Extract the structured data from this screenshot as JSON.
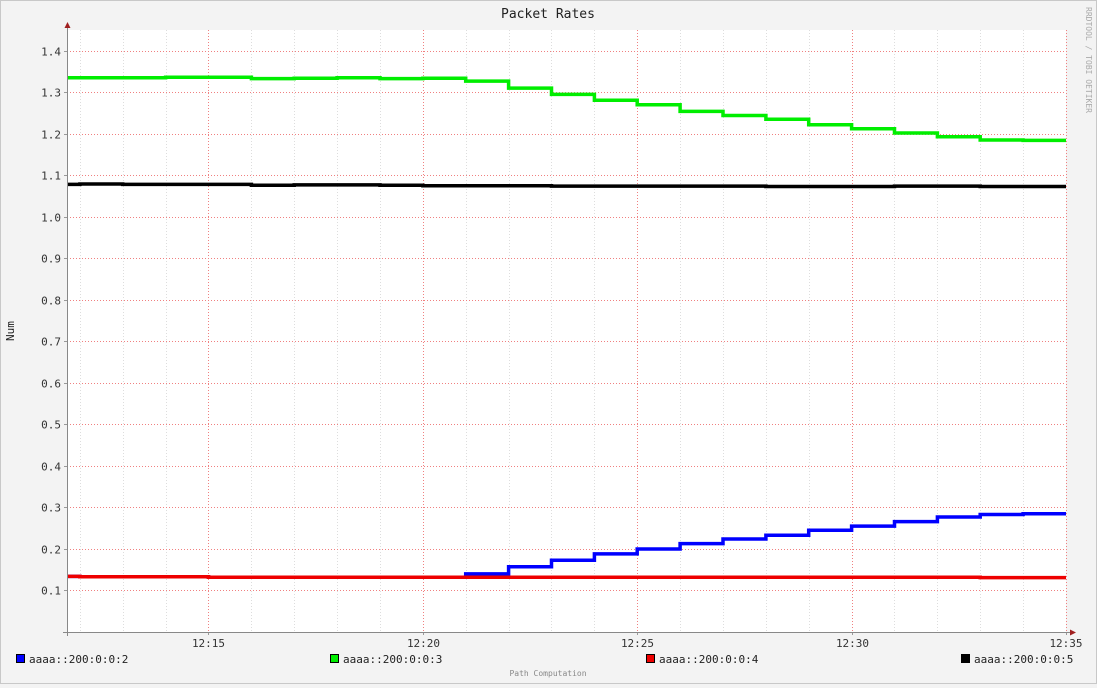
{
  "chart_data": {
    "type": "line",
    "title": "Packet Rates",
    "ylabel": "Num",
    "xlabel": "",
    "watermark": "RRDTOOL / TOBI OETIKER",
    "footer": "Path Computation",
    "x_ticks": [
      "12:15",
      "12:20",
      "12:25",
      "12:30",
      "12:35"
    ],
    "x_tick_minutes": [
      15,
      20,
      25,
      30,
      35
    ],
    "x_range_minutes": [
      11.7,
      35
    ],
    "y_ticks": [
      "0.1",
      "0.2",
      "0.3",
      "0.4",
      "0.5",
      "0.6",
      "0.7",
      "0.8",
      "0.9",
      "1.0",
      "1.1",
      "1.2",
      "1.3",
      "1.4"
    ],
    "ylim": [
      0,
      1.45
    ],
    "grid": true,
    "legend_position": "bottom",
    "series": [
      {
        "name": "aaaa::200:0:0:2",
        "color": "#0000ff",
        "step_x_minutes": [
          12,
          13,
          14,
          15,
          16,
          17,
          18,
          19,
          20,
          21,
          22,
          23,
          24,
          25,
          26,
          27,
          28,
          29,
          30,
          31,
          32,
          33,
          34,
          35
        ],
        "values": [
          0.134,
          0.133,
          0.133,
          0.133,
          0.132,
          0.132,
          0.132,
          0.132,
          0.132,
          0.132,
          0.14,
          0.157,
          0.173,
          0.188,
          0.2,
          0.213,
          0.224,
          0.233,
          0.245,
          0.255,
          0.266,
          0.277,
          0.283,
          0.285
        ]
      },
      {
        "name": "aaaa::200:0:0:3",
        "color": "#00ee00",
        "step_x_minutes": [
          12,
          13,
          14,
          15,
          16,
          17,
          18,
          19,
          20,
          21,
          22,
          23,
          24,
          25,
          26,
          27,
          28,
          29,
          30,
          31,
          32,
          33,
          34,
          35
        ],
        "values": [
          1.335,
          1.335,
          1.335,
          1.336,
          1.336,
          1.333,
          1.334,
          1.335,
          1.333,
          1.334,
          1.327,
          1.31,
          1.295,
          1.281,
          1.27,
          1.254,
          1.244,
          1.235,
          1.222,
          1.212,
          1.202,
          1.193,
          1.185,
          1.184
        ]
      },
      {
        "name": "aaaa::200:0:0:4",
        "color": "#ee0000",
        "step_x_minutes": [
          12,
          13,
          14,
          15,
          16,
          17,
          18,
          19,
          20,
          21,
          22,
          23,
          24,
          25,
          26,
          27,
          28,
          29,
          30,
          31,
          32,
          33,
          34,
          35
        ],
        "values": [
          0.134,
          0.133,
          0.133,
          0.133,
          0.132,
          0.132,
          0.132,
          0.132,
          0.132,
          0.132,
          0.132,
          0.132,
          0.132,
          0.132,
          0.132,
          0.132,
          0.132,
          0.132,
          0.132,
          0.132,
          0.132,
          0.132,
          0.131,
          0.131
        ]
      },
      {
        "name": "aaaa::200:0:0:5",
        "color": "#000000",
        "step_x_minutes": [
          12,
          13,
          14,
          15,
          16,
          17,
          18,
          19,
          20,
          21,
          22,
          23,
          24,
          25,
          26,
          27,
          28,
          29,
          30,
          31,
          32,
          33,
          34,
          35
        ],
        "values": [
          1.078,
          1.079,
          1.078,
          1.078,
          1.078,
          1.076,
          1.077,
          1.077,
          1.076,
          1.075,
          1.075,
          1.075,
          1.074,
          1.074,
          1.074,
          1.074,
          1.074,
          1.073,
          1.073,
          1.073,
          1.074,
          1.074,
          1.073,
          1.073
        ]
      }
    ]
  }
}
